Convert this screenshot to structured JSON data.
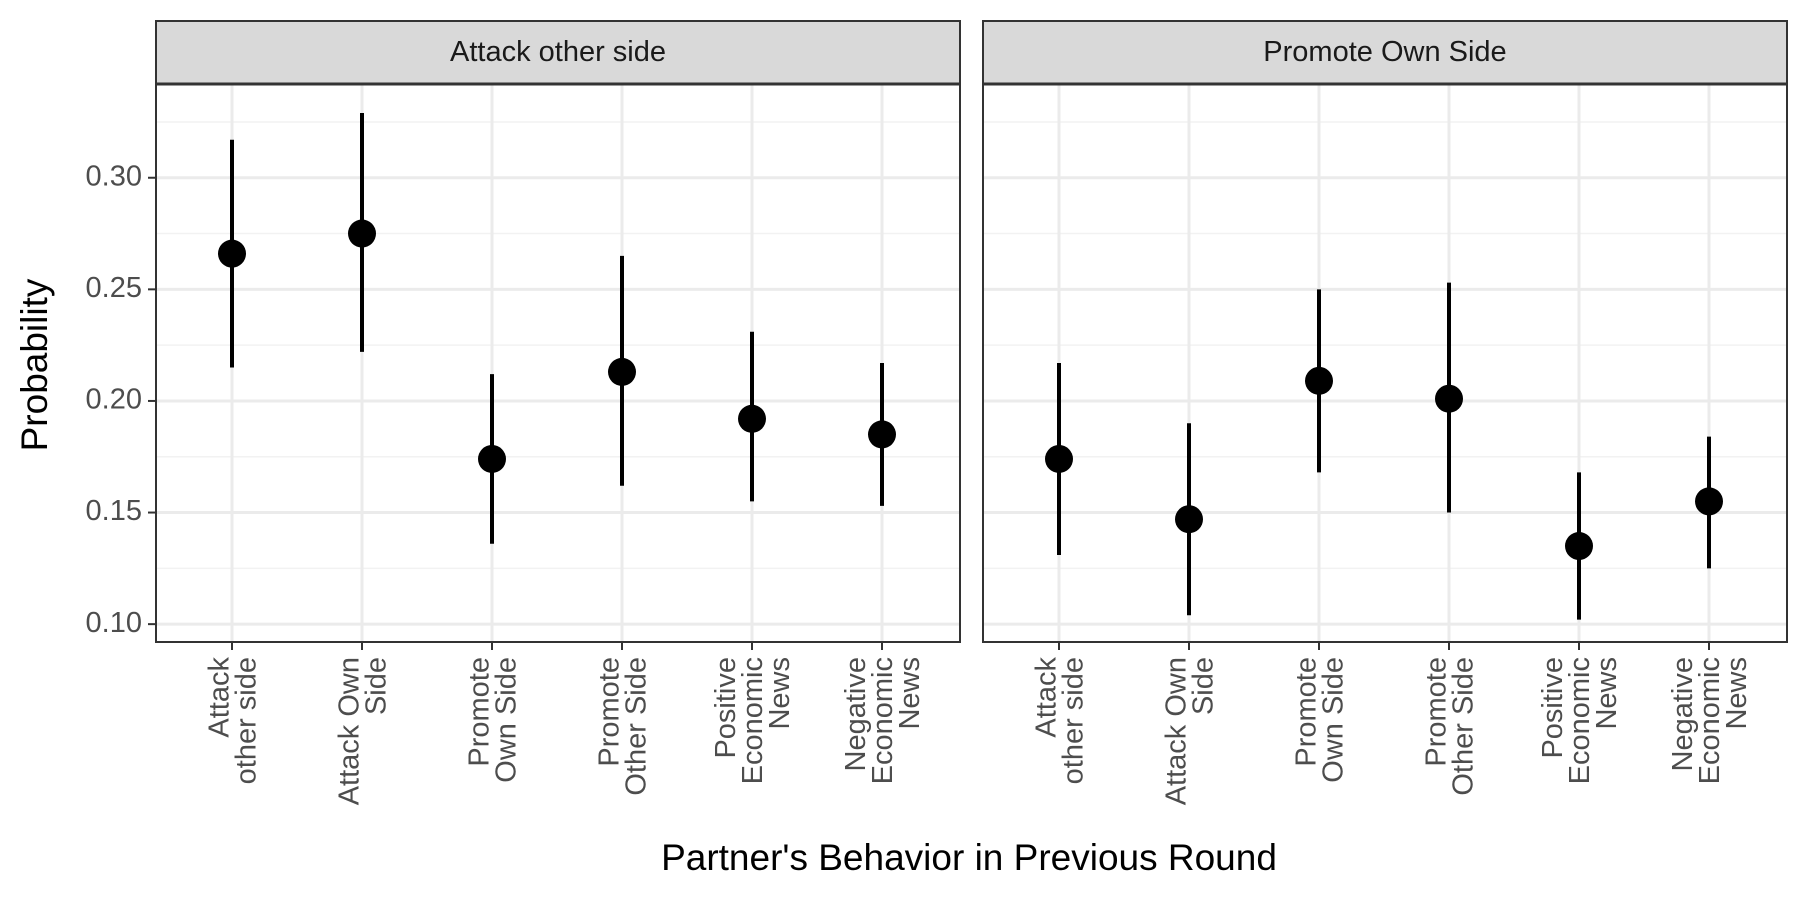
{
  "chart_data": {
    "type": "scatter",
    "subtype": "point-range faceted",
    "ylabel": "Probability",
    "xlabel": "Partner's Behavior in Previous Round",
    "ylim": [
      0.092,
      0.342
    ],
    "yticks": [
      0.1,
      0.15,
      0.2,
      0.25,
      0.3
    ],
    "ytick_labels": [
      "0.10",
      "0.15",
      "0.20",
      "0.25",
      "0.30"
    ],
    "grid": true,
    "categories": [
      [
        "Attack",
        "other side"
      ],
      [
        "Attack Own",
        "Side"
      ],
      [
        "Promote",
        "Own Side"
      ],
      [
        "Promote",
        "Other Side"
      ],
      [
        "Positive",
        "Economic",
        "News"
      ],
      [
        "Negative",
        "Economic",
        "News"
      ]
    ],
    "panels": [
      {
        "title": "Attack other side",
        "estimates": [
          0.266,
          0.275,
          0.174,
          0.213,
          0.192,
          0.185
        ],
        "lower": [
          0.215,
          0.222,
          0.136,
          0.162,
          0.155,
          0.153
        ],
        "upper": [
          0.317,
          0.329,
          0.212,
          0.265,
          0.231,
          0.217
        ]
      },
      {
        "title": "Promote Own Side",
        "estimates": [
          0.174,
          0.147,
          0.209,
          0.201,
          0.135,
          0.155
        ],
        "lower": [
          0.131,
          0.104,
          0.168,
          0.15,
          0.102,
          0.125
        ],
        "upper": [
          0.217,
          0.19,
          0.25,
          0.253,
          0.168,
          0.184
        ]
      }
    ]
  }
}
